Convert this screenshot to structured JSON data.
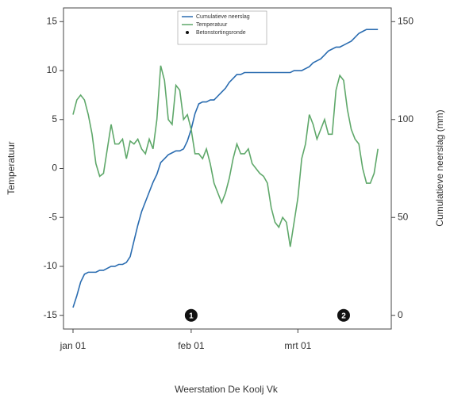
{
  "chart_data": {
    "type": "line",
    "xlabel": "Weerstation De Koolj Vk",
    "ylabel": "Temperatuur",
    "y2label": "Cumulatieve neerslag (mm)",
    "x": [
      0,
      1,
      2,
      3,
      4,
      5,
      6,
      7,
      8,
      9,
      10,
      11,
      12,
      13,
      14,
      15,
      16,
      17,
      18,
      19,
      20,
      21,
      22,
      23,
      24,
      25,
      26,
      27,
      28,
      29,
      30,
      31,
      32,
      33,
      34,
      35,
      36,
      37,
      38,
      39,
      40,
      41,
      42,
      43,
      44,
      45,
      46,
      47,
      48,
      49,
      50,
      51,
      52,
      53,
      54,
      55,
      56,
      57,
      58,
      59,
      60,
      61,
      62,
      63,
      64,
      65,
      66,
      67,
      68,
      69,
      70,
      71,
      72,
      73,
      74,
      75,
      76,
      77,
      78,
      79,
      80
    ],
    "xlim": [
      -2.5,
      83.5
    ],
    "xticks": [
      {
        "value": 0,
        "label": "jan 01"
      },
      {
        "value": 31,
        "label": "feb 01"
      },
      {
        "value": 59,
        "label": "mrt 01"
      }
    ],
    "ylim": [
      -16.4,
      16.4
    ],
    "yticks": [
      -15,
      -10,
      -5,
      0,
      5,
      10,
      15
    ],
    "y2lim": [
      -7,
      157
    ],
    "y2ticks": [
      0,
      50,
      100,
      150
    ],
    "legend": "top",
    "series": [
      {
        "name": "Cumulatieve neerslag",
        "color": "#2a6cb0",
        "axis": "y2",
        "values": [
          4,
          10,
          17,
          21,
          22,
          22,
          22,
          23,
          23,
          24,
          25,
          25,
          26,
          26,
          27,
          30,
          38,
          46,
          53,
          58,
          63,
          68,
          72,
          78,
          80,
          82,
          83,
          84,
          84,
          85,
          89,
          95,
          103,
          108,
          109,
          109,
          110,
          110,
          112,
          114,
          116,
          119,
          121,
          123,
          123,
          124,
          124,
          124,
          124,
          124,
          124,
          124,
          124,
          124,
          124,
          124,
          124,
          124,
          125,
          125,
          125,
          126,
          127,
          129,
          130,
          131,
          133,
          135,
          136,
          137,
          137,
          138,
          139,
          140,
          142,
          144,
          145,
          146,
          146,
          146,
          146
        ]
      },
      {
        "name": "Temperatuur",
        "color": "#5fa86a",
        "values": [
          5.5,
          7,
          7.5,
          7,
          5.5,
          3.5,
          0.5,
          -0.8,
          -0.5,
          2,
          4.5,
          2.5,
          2.5,
          3,
          1,
          2.8,
          2.5,
          3,
          2,
          1.5,
          3,
          2,
          5,
          10.5,
          9,
          5,
          4.5,
          8.5,
          8,
          5,
          5.5,
          4,
          1.5,
          1.5,
          1,
          2,
          0.5,
          -1.5,
          -2.5,
          -3.5,
          -2.5,
          -1,
          1,
          2.5,
          1.5,
          1.5,
          2,
          0.5,
          0,
          -0.5,
          -0.8,
          -1.5,
          -4,
          -5.5,
          -6,
          -5,
          -5.5,
          -8,
          -5.5,
          -3,
          1,
          2.5,
          5.5,
          4.5,
          3,
          4,
          5,
          3.5,
          3.5,
          8,
          9.5,
          9,
          6,
          4,
          3,
          2.5,
          0,
          -1.5,
          -1.5,
          -0.5,
          2
        ]
      }
    ],
    "annotations": {
      "name": "Betonstortingsronde",
      "color": "#111111",
      "points": [
        {
          "x": 31,
          "label": "1"
        },
        {
          "x": 71,
          "label": "2"
        }
      ]
    }
  }
}
